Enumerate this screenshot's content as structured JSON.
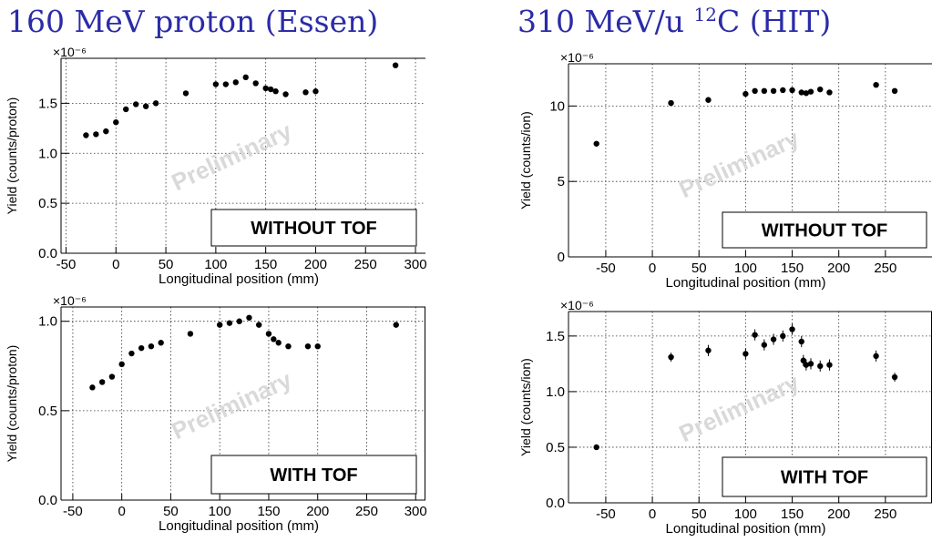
{
  "titles": {
    "left": "160 MeV proton (Essen)",
    "right_prefix": "310 MeV/u ",
    "right_sup": "12",
    "right_suffix": "C (HIT)"
  },
  "chart_data": [
    {
      "type": "scatter",
      "title": "160 MeV proton (Essen)",
      "label_box": "WITHOUT TOF",
      "watermark": "Preliminary",
      "xlabel": "Longitudinal position (mm)",
      "ylabel": "Yield (counts/proton)",
      "exponent_label": "×10⁻⁶",
      "xlim": [
        -55,
        310
      ],
      "ylim": [
        0,
        1.95
      ],
      "xticks": [
        -50,
        0,
        50,
        100,
        150,
        200,
        250,
        300
      ],
      "xtick_labels": [
        "-50",
        "0",
        "50",
        "100",
        "150",
        "200",
        "250",
        "300"
      ],
      "yticks": [
        0,
        0.5,
        1.0,
        1.5
      ],
      "ytick_labels": [
        "0.0",
        "0.5",
        "1.0",
        "1.5"
      ],
      "grid": true,
      "series": [
        {
          "x": [
            -30,
            -20,
            -10,
            0,
            10,
            20,
            30,
            40,
            70,
            100,
            110,
            120,
            130,
            140,
            150,
            155,
            160,
            170,
            190,
            200,
            280
          ],
          "y": [
            1.18,
            1.19,
            1.22,
            1.31,
            1.44,
            1.49,
            1.47,
            1.5,
            1.6,
            1.69,
            1.69,
            1.71,
            1.76,
            1.7,
            1.65,
            1.64,
            1.62,
            1.59,
            1.61,
            1.62,
            1.88
          ]
        }
      ]
    },
    {
      "type": "scatter",
      "title": "310 MeV/u 12C (HIT)",
      "label_box": "WITHOUT TOF",
      "watermark": "Preliminary",
      "xlabel": "Longitudinal position (mm)",
      "ylabel": "Yield (counts/ion)",
      "exponent_label": "×10⁻⁶",
      "xlim": [
        -90,
        300
      ],
      "ylim": [
        0,
        12.8
      ],
      "xticks": [
        -50,
        0,
        50,
        100,
        150,
        200,
        250
      ],
      "xtick_labels": [
        "-50",
        "0",
        "50",
        "100",
        "150",
        "200",
        "250"
      ],
      "yticks": [
        0,
        5,
        10
      ],
      "ytick_labels": [
        "0",
        "5",
        "10"
      ],
      "grid": true,
      "series": [
        {
          "x": [
            -60,
            20,
            60,
            100,
            110,
            120,
            130,
            140,
            150,
            160,
            165,
            170,
            180,
            190,
            240,
            260
          ],
          "y": [
            7.5,
            10.2,
            10.4,
            10.8,
            11.0,
            11.0,
            11.0,
            11.05,
            11.05,
            10.9,
            10.85,
            10.95,
            11.1,
            10.9,
            11.4,
            11.0
          ]
        }
      ]
    },
    {
      "type": "scatter",
      "title": "160 MeV proton (Essen)",
      "label_box": "WITH TOF",
      "watermark": "Preliminary",
      "xlabel": "Longitudinal position (mm)",
      "ylabel": "Yield (counts/proton)",
      "exponent_label": "×10⁻⁶",
      "xlim": [
        -62,
        310
      ],
      "ylim": [
        0,
        1.08
      ],
      "xticks": [
        -50,
        0,
        50,
        100,
        150,
        200,
        250,
        300
      ],
      "xtick_labels": [
        "-50",
        "0",
        "50",
        "100",
        "150",
        "200",
        "250",
        "300"
      ],
      "yticks": [
        0,
        0.5,
        1.0
      ],
      "ytick_labels": [
        "0.0",
        "0.5",
        "1.0"
      ],
      "grid": true,
      "series": [
        {
          "x": [
            -30,
            -20,
            -10,
            0,
            10,
            20,
            30,
            40,
            70,
            100,
            110,
            120,
            130,
            140,
            150,
            155,
            160,
            170,
            190,
            200,
            280
          ],
          "y": [
            0.63,
            0.66,
            0.69,
            0.76,
            0.82,
            0.85,
            0.86,
            0.88,
            0.93,
            0.98,
            0.99,
            1.0,
            1.02,
            0.98,
            0.93,
            0.9,
            0.88,
            0.86,
            0.86,
            0.86,
            0.98
          ]
        }
      ]
    },
    {
      "type": "scatter",
      "title": "310 MeV/u 12C (HIT)",
      "label_box": "WITH TOF",
      "watermark": "Preliminary",
      "xlabel": "Longitudinal position (mm)",
      "ylabel": "Yield (counts/ion)",
      "exponent_label": "×10⁻⁶",
      "xlim": [
        -90,
        300
      ],
      "ylim": [
        0,
        1.72
      ],
      "xticks": [
        -50,
        0,
        50,
        100,
        150,
        200,
        250
      ],
      "xtick_labels": [
        "-50",
        "0",
        "50",
        "100",
        "150",
        "200",
        "250"
      ],
      "yticks": [
        0,
        0.5,
        1.0,
        1.5
      ],
      "ytick_labels": [
        "0.0",
        "0.5",
        "1.0",
        "1.5"
      ],
      "grid": true,
      "series": [
        {
          "x": [
            -60,
            20,
            60,
            100,
            110,
            120,
            130,
            140,
            150,
            160,
            162,
            165,
            170,
            180,
            190,
            240,
            260
          ],
          "y": [
            0.5,
            1.31,
            1.37,
            1.34,
            1.51,
            1.42,
            1.47,
            1.5,
            1.56,
            1.45,
            1.28,
            1.24,
            1.25,
            1.23,
            1.24,
            1.32,
            1.13
          ],
          "yerr": [
            0.02,
            0.04,
            0.05,
            0.05,
            0.05,
            0.05,
            0.05,
            0.05,
            0.05,
            0.05,
            0.05,
            0.05,
            0.05,
            0.05,
            0.05,
            0.05,
            0.04
          ]
        }
      ]
    }
  ]
}
